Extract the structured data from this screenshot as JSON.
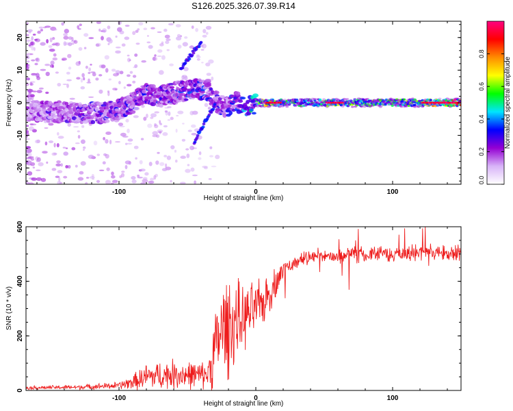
{
  "title": "S126.2025.326.07.39.R14",
  "chart_data": [
    {
      "type": "heatmap",
      "title": "S126.2025.326.07.39.R14",
      "xlabel": "Height of straight line (km)",
      "ylabel": "Frequency (Hz)",
      "xlim": [
        -168,
        150
      ],
      "ylim": [
        -25,
        25
      ],
      "xticks": [
        -100,
        0,
        100
      ],
      "yticks": [
        -20,
        -10,
        0,
        10,
        20
      ],
      "xtick_labels": [
        "-100",
        "0",
        "100"
      ],
      "ytick_labels": [
        "-20",
        "-10",
        "0",
        "10",
        "20"
      ],
      "colorbar": {
        "label": "Normalized spectral amplitude",
        "range": [
          0.0,
          1.0
        ],
        "ticks": [
          0.0,
          0.2,
          0.4,
          0.6,
          0.8
        ],
        "tick_labels": [
          "0.0",
          "0.2",
          "0.4",
          "0.6",
          "0.8"
        ],
        "colormap": [
          "#ffffff",
          "#d8b4f8",
          "#9400d3",
          "#0000ff",
          "#00e5ff",
          "#00ff00",
          "#ffff00",
          "#ff8c00",
          "#ff0000",
          "#ff0080"
        ]
      },
      "ridge": {
        "description_free": true,
        "x": [
          -168,
          -150,
          -130,
          -110,
          -100,
          -90,
          -80,
          -70,
          -60,
          -50,
          -40,
          -35,
          -30,
          -25,
          -20,
          -15,
          -10,
          -5,
          0,
          10,
          20,
          40,
          60,
          80,
          100,
          120,
          150
        ],
        "freq": [
          -2,
          -3,
          -3,
          -3,
          -2,
          0,
          3,
          2,
          3,
          4,
          4,
          4,
          1,
          -1,
          -1,
          0,
          0,
          -1,
          0,
          0,
          0,
          0,
          0,
          0,
          0,
          0,
          0
        ],
        "amplitude": [
          0.2,
          0.25,
          0.28,
          0.3,
          0.3,
          0.3,
          0.35,
          0.32,
          0.33,
          0.34,
          0.35,
          0.3,
          0.3,
          0.3,
          0.3,
          0.35,
          0.4,
          0.45,
          0.5,
          0.8,
          0.55,
          0.55,
          0.6,
          0.55,
          0.55,
          0.6,
          0.95
        ]
      },
      "side_branches": [
        {
          "x": [
            -55,
            -45,
            -40
          ],
          "freq": [
            10,
            16,
            18
          ]
        },
        {
          "x": [
            -45,
            -40,
            -35,
            -30
          ],
          "freq": [
            -12,
            -8,
            -4,
            -1
          ]
        }
      ]
    },
    {
      "type": "line",
      "xlabel": "Height of straight line (km)",
      "ylabel": "SNR (10 * v/v)",
      "xlim": [
        -168,
        150
      ],
      "ylim": [
        0,
        600
      ],
      "xticks": [
        -100,
        0,
        100
      ],
      "yticks": [
        0,
        200,
        400,
        600
      ],
      "xtick_labels": [
        "-100",
        "0",
        "100"
      ],
      "ytick_labels": [
        "0",
        "200",
        "400",
        "600"
      ],
      "color": "#ee1c1c",
      "trend": {
        "x": [
          -168,
          -130,
          -100,
          -90,
          -80,
          -60,
          -40,
          -35,
          -30,
          -25,
          -20,
          -15,
          -10,
          -5,
          0,
          5,
          10,
          15,
          20,
          30,
          40,
          60,
          80,
          100,
          120,
          150
        ],
        "mean": [
          10,
          12,
          18,
          30,
          50,
          60,
          55,
          60,
          150,
          220,
          240,
          250,
          260,
          280,
          300,
          320,
          360,
          400,
          440,
          470,
          490,
          495,
          500,
          500,
          505,
          505
        ],
        "noise": [
          6,
          8,
          12,
          25,
          45,
          50,
          45,
          50,
          130,
          160,
          170,
          150,
          110,
          100,
          90,
          80,
          70,
          50,
          30,
          28,
          28,
          28,
          28,
          28,
          28,
          28
        ]
      }
    }
  ]
}
